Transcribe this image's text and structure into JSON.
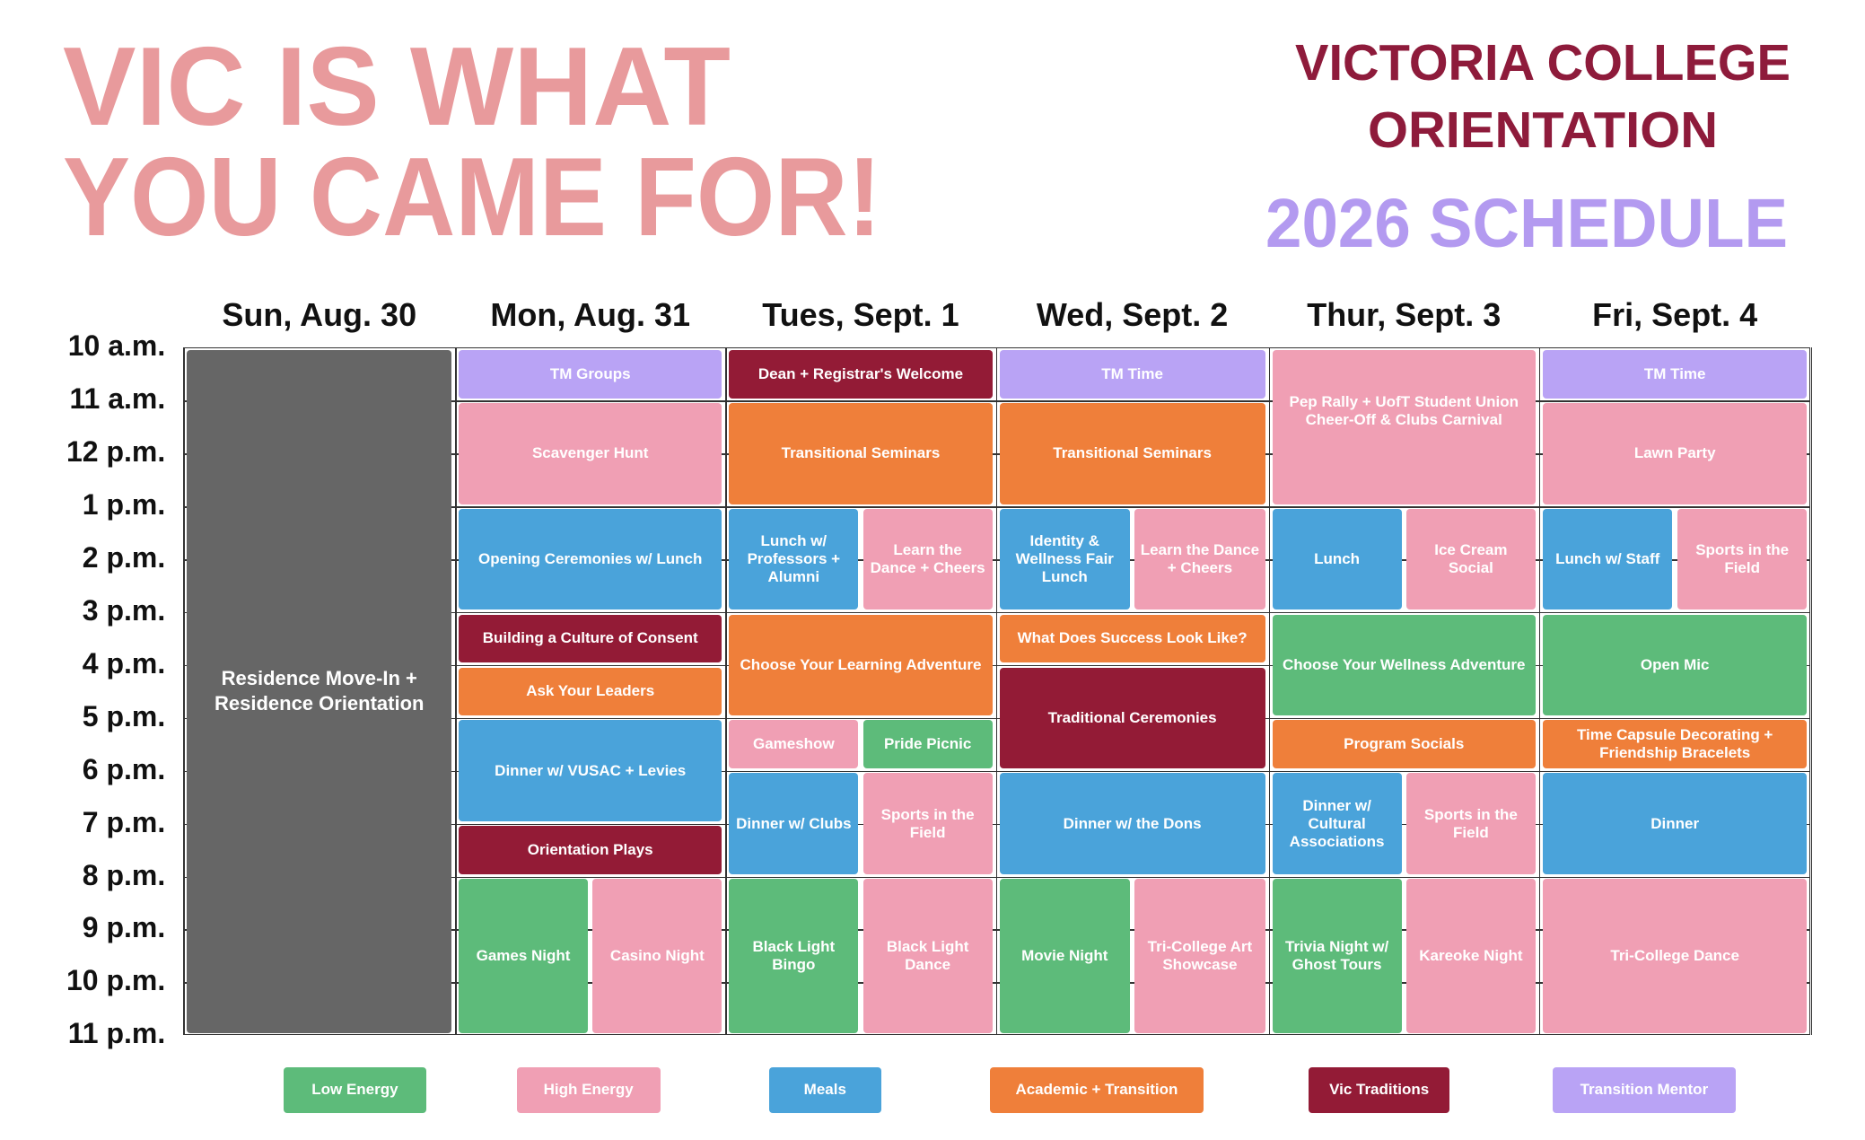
{
  "header": {
    "title_lines": [
      "VIC IS WHAT",
      "YOU CAME FOR!"
    ],
    "org_lines": [
      "VICTORIA COLLEGE",
      "ORIENTATION"
    ],
    "subtitle": "2026 SCHEDULE"
  },
  "schedule": {
    "times": [
      "10 a.m.",
      "11 a.m.",
      "12 p.m.",
      "1 p.m.",
      "2 p.m.",
      "3 p.m.",
      "4 p.m.",
      "5 p.m.",
      "6 p.m.",
      "7 p.m.",
      "8 p.m.",
      "9 p.m.",
      "10 p.m.",
      "11 p.m."
    ],
    "days": [
      {
        "name": "Sun, Aug. 30",
        "events": [
          "Residence Move-In + Residence Orientation"
        ]
      },
      {
        "name": "Mon, Aug. 31",
        "events": [
          "TM Groups",
          "Scavenger Hunt",
          "Opening Ceremonies w/ Lunch",
          "Building a Culture of Consent",
          "Ask Your Leaders",
          "Dinner w/ VUSAC + Levies",
          "Orientation Plays",
          "Games Night",
          "Casino Night"
        ]
      },
      {
        "name": "Tues, Sept. 1",
        "events": [
          "Dean + Registrar's Welcome",
          "Transitional Seminars",
          "Lunch w/ Professors + Alumni",
          "Learn the Dance + Cheers",
          "Choose Your Learning Adventure",
          "Gameshow",
          "Pride Picnic",
          "Dinner w/ Clubs",
          "Sports in the Field",
          "Black Light Bingo",
          "Black Light Dance"
        ]
      },
      {
        "name": "Wed, Sept. 2",
        "events": [
          "TM Time",
          "Transitional Seminars",
          "Identity & Wellness Fair Lunch",
          "Learn the Dance + Cheers",
          "What Does Success Look Like?",
          "Traditional Ceremonies",
          "Dinner w/ the Dons",
          "Movie Night",
          "Tri-College Art Showcase"
        ]
      },
      {
        "name": "Thur, Sept. 3",
        "events": [
          "Pep Rally + UofT Student Union Cheer-Off & Clubs Carnival",
          "Lunch",
          "Ice Cream Social",
          "Choose Your Wellness Adventure",
          "Program Socials",
          "Dinner w/ Cultural Associations",
          "Sports in the Field",
          "Trivia Night w/ Ghost Tours",
          "Kareoke Night"
        ]
      },
      {
        "name": "Fri, Sept. 4",
        "events": [
          "TM Time",
          "Lawn Party",
          "Lunch w/ Staff",
          "Sports in the Field",
          "Open Mic",
          "Time Capsule Decorating + Friendship Bracelets",
          "Dinner",
          "Tri-College Dance"
        ]
      }
    ]
  },
  "legend": {
    "items": [
      "Low Energy",
      "High Energy",
      "Meals",
      "Academic + Transition",
      "Vic Traditions",
      "Transition Mentor"
    ]
  }
}
